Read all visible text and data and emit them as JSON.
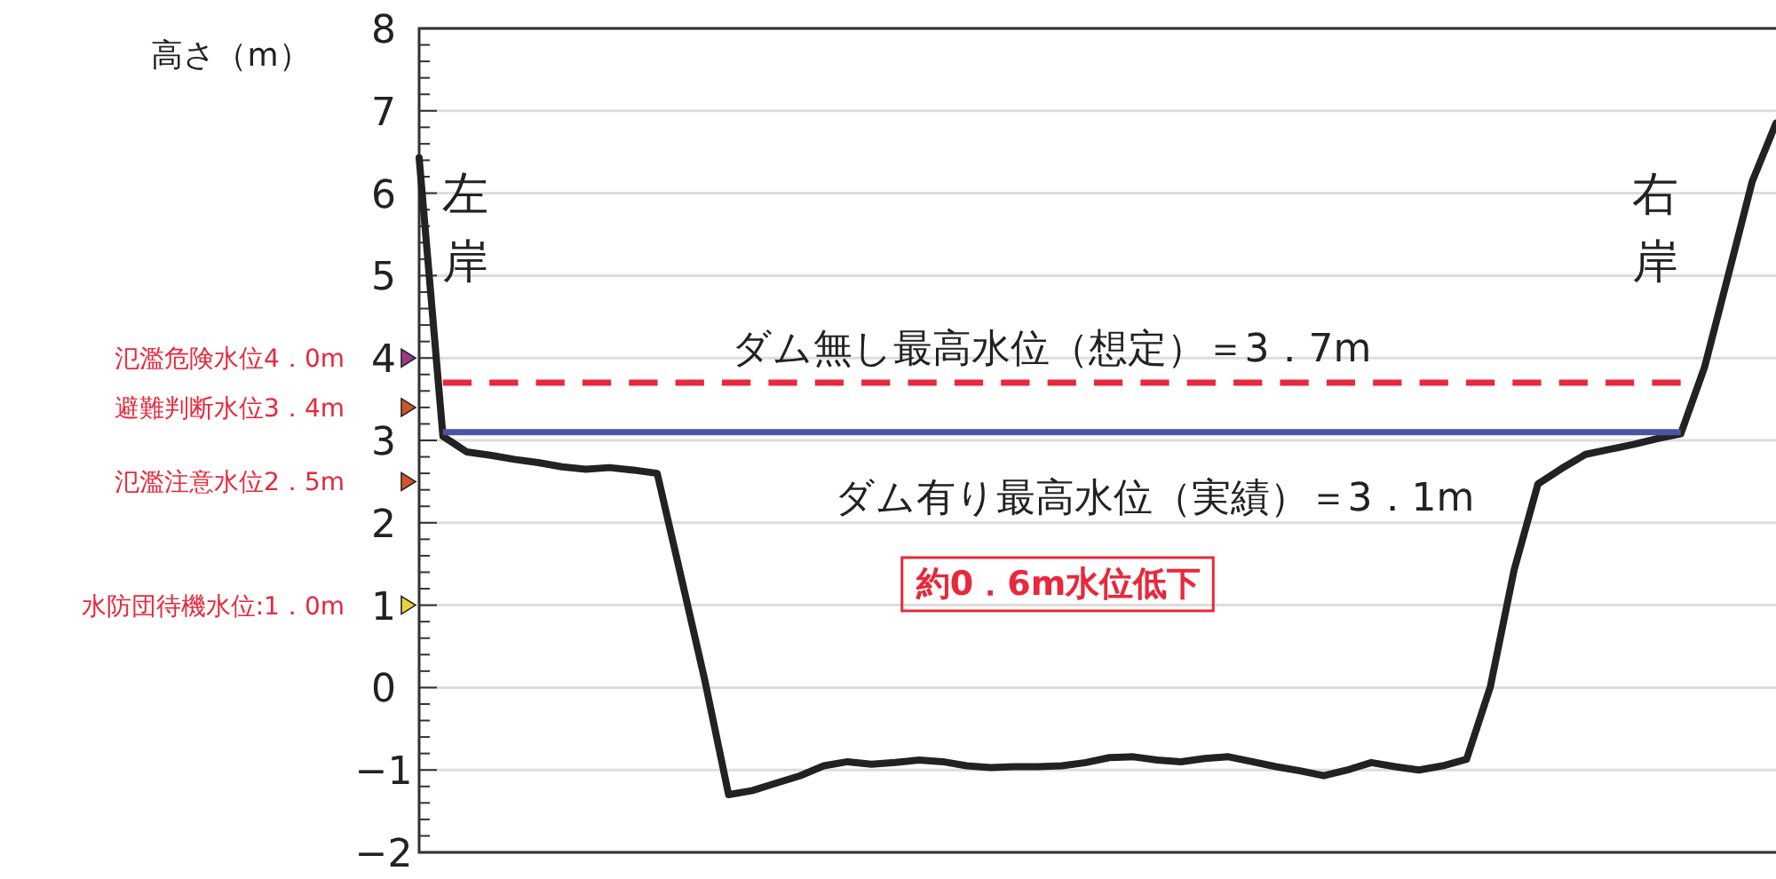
{
  "chart_data": {
    "type": "line",
    "ylabel": "高さ（m）",
    "categories": [
      null,
      null,
      null,
      null,
      null,
      null,
      null,
      null,
      null,
      null,
      null,
      null,
      null,
      null,
      null,
      null,
      null,
      null,
      null,
      null,
      null,
      null,
      null,
      null,
      null,
      null,
      null,
      null,
      null,
      null,
      null,
      null,
      null,
      null,
      null,
      null,
      null,
      null,
      null,
      null,
      null,
      null,
      null,
      null,
      null,
      null,
      null,
      null,
      null,
      null,
      null,
      null,
      null,
      null,
      null,
      null,
      null,
      null
    ],
    "series": [
      {
        "color": "#222222",
        "values": [
          6.43,
          3.05,
          2.86,
          2.82,
          2.77,
          2.73,
          2.68,
          2.65,
          2.67,
          2.64,
          2.6,
          1.35,
          0.09,
          -1.3,
          -1.25,
          -1.16,
          -1.07,
          -0.95,
          -0.9,
          -0.93,
          -0.91,
          -0.88,
          -0.9,
          -0.95,
          -0.97,
          -0.96,
          -0.96,
          -0.95,
          -0.91,
          -0.85,
          -0.84,
          -0.88,
          -0.9,
          -0.86,
          -0.84,
          -0.9,
          -0.96,
          -1.01,
          -1.07,
          -1.0,
          -0.91,
          -0.96,
          -1.0,
          -0.95,
          -0.87,
          0.01,
          1.43,
          2.47,
          2.66,
          2.83,
          2.89,
          2.95,
          3.02,
          3.08,
          3.89,
          5.01,
          6.14,
          6.85
        ]
      },
      {
        "name": "ダム無し最高水位（想定）＝3．7m",
        "color": "#e8283c",
        "line_style": "dashed",
        "values": [
          null,
          3.7,
          3.7,
          3.7,
          3.7,
          3.7,
          3.7,
          3.7,
          3.7,
          3.7,
          3.7,
          3.7,
          3.7,
          3.7,
          3.7,
          3.7,
          3.7,
          3.7,
          3.7,
          3.7,
          3.7,
          3.7,
          3.7,
          3.7,
          3.7,
          3.7,
          3.7,
          3.7,
          3.7,
          3.7,
          3.7,
          3.7,
          3.7,
          3.7,
          3.7,
          3.7,
          3.7,
          3.7,
          3.7,
          3.7,
          3.7,
          3.7,
          3.7,
          3.7,
          3.7,
          3.7,
          3.7,
          3.7,
          3.7,
          3.7,
          3.7,
          3.7,
          3.7,
          3.7,
          null,
          null,
          null,
          null
        ]
      },
      {
        "type": "scatter",
        "color": "#9b3b8f",
        "marker": "triangle",
        "values": [
          4.0,
          null,
          null,
          null,
          null,
          null,
          null,
          null,
          null,
          null,
          null,
          null,
          null,
          null,
          null,
          null,
          null,
          null,
          null,
          null,
          null,
          null,
          null,
          null,
          null,
          null,
          null,
          null,
          null,
          null,
          null,
          null,
          null,
          null,
          null,
          null,
          null,
          null,
          null,
          null,
          null,
          null,
          null,
          null,
          null,
          null,
          null,
          null,
          null,
          null,
          null,
          null,
          null,
          null,
          null,
          null,
          null,
          null
        ]
      },
      {
        "type": "scatter",
        "color": "#d2552a",
        "marker": "triangle",
        "values": [
          3.4,
          null,
          null,
          null,
          null,
          null,
          null,
          null,
          null,
          null,
          null,
          null,
          null,
          null,
          null,
          null,
          null,
          null,
          null,
          null,
          null,
          null,
          null,
          null,
          null,
          null,
          null,
          null,
          null,
          null,
          null,
          null,
          null,
          null,
          null,
          null,
          null,
          null,
          null,
          null,
          null,
          null,
          null,
          null,
          null,
          null,
          null,
          null,
          null,
          null,
          null,
          null,
          null,
          null,
          null,
          null,
          null,
          null
        ]
      },
      {
        "type": "scatter",
        "color": "#d2552a",
        "marker": "triangle",
        "values": [
          2.5,
          null,
          null,
          null,
          null,
          null,
          null,
          null,
          null,
          null,
          null,
          null,
          null,
          null,
          null,
          null,
          null,
          null,
          null,
          null,
          null,
          null,
          null,
          null,
          null,
          null,
          null,
          null,
          null,
          null,
          null,
          null,
          null,
          null,
          null,
          null,
          null,
          null,
          null,
          null,
          null,
          null,
          null,
          null,
          null,
          null,
          null,
          null,
          null,
          null,
          null,
          null,
          null,
          null,
          null,
          null,
          null,
          null
        ]
      },
      {
        "type": "scatter",
        "color": "#e6d43a",
        "marker": "triangle",
        "values": [
          1.0,
          null,
          null,
          null,
          null,
          null,
          null,
          null,
          null,
          null,
          null,
          null,
          null,
          null,
          null,
          null,
          null,
          null,
          null,
          null,
          null,
          null,
          null,
          null,
          null,
          null,
          null,
          null,
          null,
          null,
          null,
          null,
          null,
          null,
          null,
          null,
          null,
          null,
          null,
          null,
          null,
          null,
          null,
          null,
          null,
          null,
          null,
          null,
          null,
          null,
          null,
          null,
          null,
          null,
          null,
          null,
          null,
          null
        ]
      },
      {
        "name": "ダム有り最高水位（実績）＝3．1m",
        "color": "#4a55a2",
        "values": [
          null,
          3.1,
          3.1,
          3.1,
          3.1,
          3.1,
          3.1,
          3.1,
          3.1,
          3.1,
          3.1,
          3.1,
          3.1,
          3.1,
          3.1,
          3.1,
          3.1,
          3.1,
          3.1,
          3.1,
          3.1,
          3.1,
          3.1,
          3.1,
          3.1,
          3.1,
          3.1,
          3.1,
          3.1,
          3.1,
          3.1,
          3.1,
          3.1,
          3.1,
          3.1,
          3.1,
          3.1,
          3.1,
          3.1,
          3.1,
          3.1,
          3.1,
          3.1,
          3.1,
          3.1,
          3.1,
          3.1,
          3.1,
          3.1,
          3.1,
          3.1,
          3.1,
          3.1,
          3.1,
          null,
          null,
          null,
          null
        ]
      }
    ],
    "ylim": [
      -2,
      8
    ],
    "yticks": [
      -2,
      -1,
      0,
      1,
      2,
      3,
      4,
      5,
      6,
      7,
      8
    ],
    "grid": "y",
    "marker": "none",
    "legend": false,
    "annotations": [
      "氾濫危険水位4．0m",
      "避難判断水位3．4m",
      "氾濫注意水位2．5m",
      "水防団待機水位:1．0m",
      "左岸",
      "右岸",
      "約0．6m水位低下"
    ]
  }
}
